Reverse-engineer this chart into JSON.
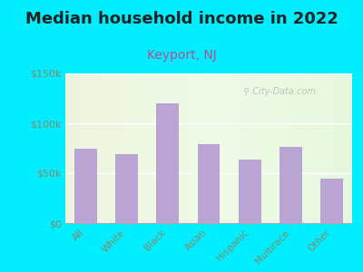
{
  "title": "Median household income in 2022",
  "subtitle": "Keyport, NJ",
  "categories": [
    "All",
    "White",
    "Black",
    "Asian",
    "Hispanic",
    "Multirace",
    "Other"
  ],
  "values": [
    75000,
    69000,
    120000,
    79000,
    64000,
    76000,
    45000
  ],
  "bar_color": "#b9a4d4",
  "background_outer": "#00eeff",
  "title_color": "#222222",
  "subtitle_color": "#b05090",
  "tick_label_color": "#888866",
  "watermark": "City-Data.com",
  "ylim": [
    0,
    150000
  ],
  "yticks": [
    0,
    50000,
    100000,
    150000
  ],
  "title_fontsize": 13,
  "subtitle_fontsize": 10
}
